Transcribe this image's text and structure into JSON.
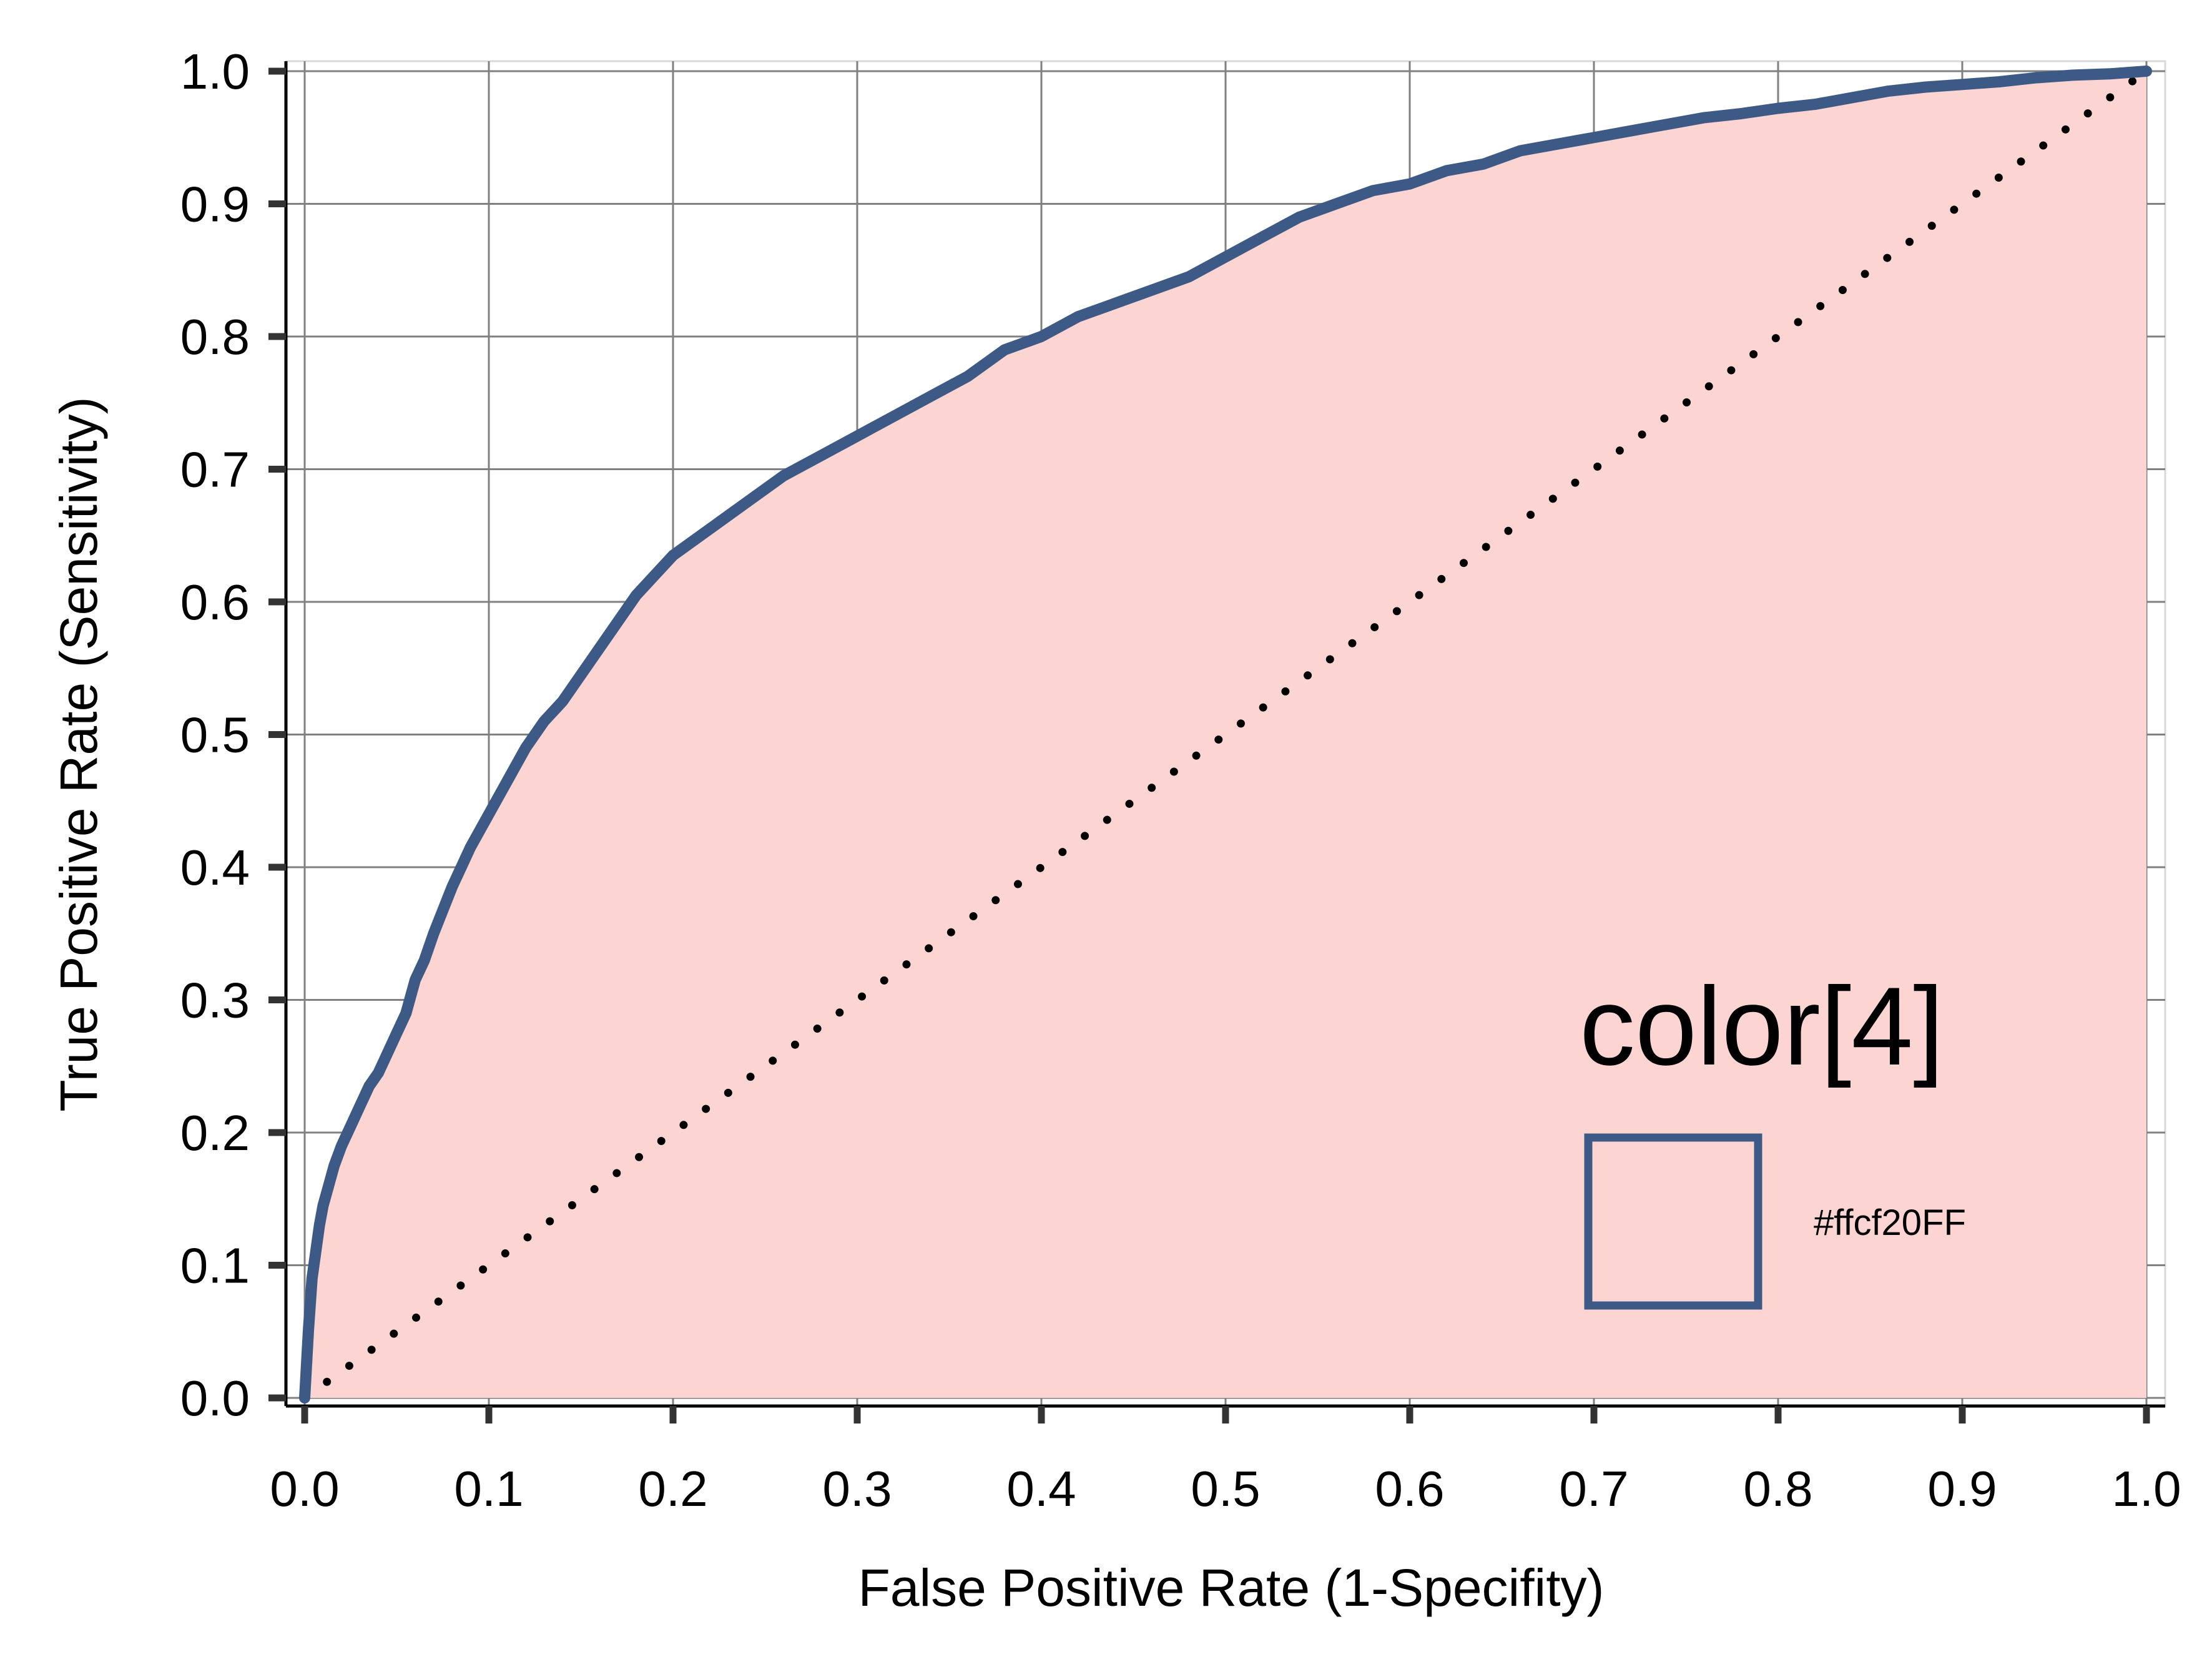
{
  "chart_data": {
    "type": "line",
    "title": "",
    "xlabel": "False Positive Rate (1-Specifity)",
    "ylabel": "True Positive Rate (Sensitivity)",
    "xlim": [
      0.0,
      1.0
    ],
    "ylim": [
      0.0,
      1.0
    ],
    "grid": true,
    "x_ticks": [
      "0.0",
      "0.1",
      "0.2",
      "0.3",
      "0.4",
      "0.5",
      "0.6",
      "0.7",
      "0.8",
      "0.9",
      "1.0"
    ],
    "y_ticks": [
      "0.0",
      "0.1",
      "0.2",
      "0.3",
      "0.4",
      "0.5",
      "0.6",
      "0.7",
      "0.8",
      "0.9",
      "1.0"
    ],
    "series": [
      {
        "line_color": "#3d5a87",
        "fill_color": "#fcd5d3",
        "area_filled": true,
        "x": [
          0.0,
          0.002,
          0.004,
          0.006,
          0.008,
          0.01,
          0.013,
          0.016,
          0.02,
          0.025,
          0.03,
          0.035,
          0.04,
          0.045,
          0.05,
          0.055,
          0.06,
          0.065,
          0.07,
          0.08,
          0.09,
          0.1,
          0.11,
          0.12,
          0.13,
          0.14,
          0.15,
          0.16,
          0.17,
          0.18,
          0.19,
          0.2,
          0.22,
          0.24,
          0.26,
          0.28,
          0.3,
          0.32,
          0.34,
          0.36,
          0.38,
          0.4,
          0.42,
          0.44,
          0.46,
          0.48,
          0.5,
          0.52,
          0.54,
          0.56,
          0.58,
          0.6,
          0.62,
          0.64,
          0.66,
          0.68,
          0.7,
          0.72,
          0.74,
          0.76,
          0.78,
          0.8,
          0.82,
          0.84,
          0.86,
          0.88,
          0.9,
          0.92,
          0.94,
          0.96,
          0.98,
          1.0
        ],
        "y": [
          0.0,
          0.05,
          0.09,
          0.11,
          0.13,
          0.145,
          0.16,
          0.175,
          0.19,
          0.205,
          0.22,
          0.235,
          0.245,
          0.26,
          0.275,
          0.29,
          0.315,
          0.33,
          0.35,
          0.385,
          0.415,
          0.44,
          0.465,
          0.49,
          0.51,
          0.525,
          0.545,
          0.565,
          0.585,
          0.605,
          0.62,
          0.635,
          0.655,
          0.675,
          0.695,
          0.71,
          0.725,
          0.74,
          0.755,
          0.77,
          0.79,
          0.8,
          0.815,
          0.825,
          0.835,
          0.845,
          0.86,
          0.875,
          0.89,
          0.9,
          0.91,
          0.915,
          0.925,
          0.93,
          0.94,
          0.945,
          0.95,
          0.955,
          0.96,
          0.965,
          0.968,
          0.972,
          0.975,
          0.98,
          0.985,
          0.988,
          0.99,
          0.992,
          0.995,
          0.997,
          0.998,
          1.0
        ]
      }
    ],
    "reference_line": {
      "x": [
        0.0,
        1.0
      ],
      "y": [
        0.0,
        1.0
      ],
      "style": "dotted",
      "color": "#000000"
    },
    "legend": {
      "title": "color[4]",
      "entries": [
        {
          "label": "#ffcf20FF",
          "swatch_border": "#3d5a87",
          "swatch_fill": "#fcd5d3"
        }
      ],
      "placement": "bottom-right"
    }
  }
}
